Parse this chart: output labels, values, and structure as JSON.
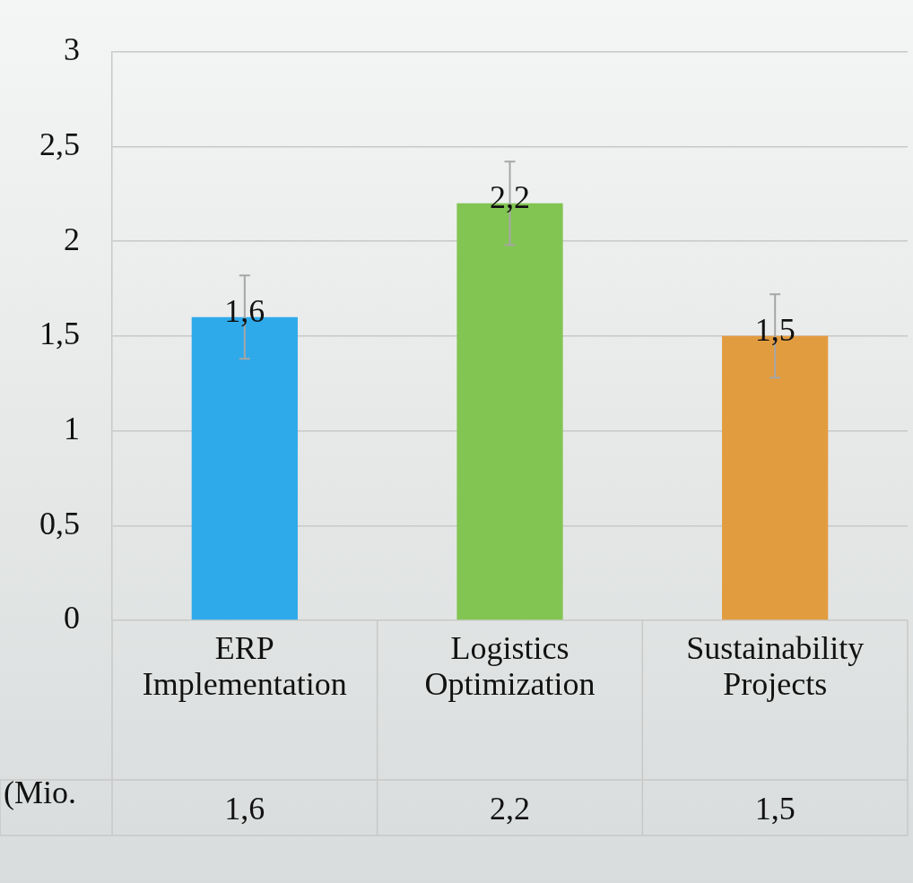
{
  "chart_data": {
    "type": "bar",
    "categories": [
      "ERP Implementation",
      "Logistics Optimization",
      "Sustainability Projects"
    ],
    "series": [
      {
        "name": "(Mio.",
        "colors": [
          "#2eaaea",
          "#82c552",
          "#e29c40"
        ],
        "values": [
          1.6,
          2.2,
          1.5
        ],
        "value_labels": [
          "1,6",
          "2,2",
          "1,5"
        ],
        "errors": [
          0.22,
          0.22,
          0.22
        ]
      }
    ],
    "ylim": [
      0,
      3
    ],
    "yticks": [
      0,
      {
        "value": 0.5,
        "label": "0,5"
      },
      1,
      {
        "value": 1.5,
        "label": "1,5"
      },
      2,
      {
        "value": 2.5,
        "label": "2,5"
      },
      3
    ],
    "grid": "y",
    "legend": false
  }
}
